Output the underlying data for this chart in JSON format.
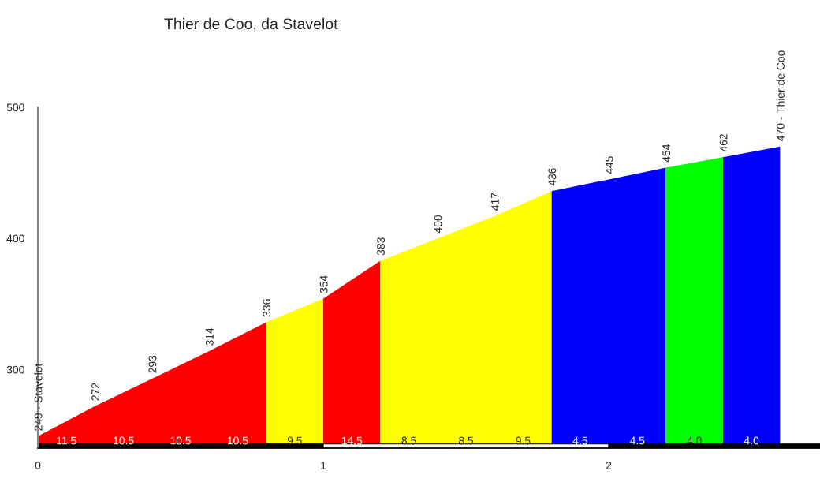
{
  "chart_data": {
    "type": "area",
    "title": "Thier de Coo, da Stavelot",
    "series": [
      {
        "x": [
          0,
          0.2,
          0.4,
          0.6,
          0.8
        ],
        "values": [
          249,
          272,
          293,
          314,
          336
        ],
        "color": "#ff0000",
        "value_labels": [
          "249 - Stavelot",
          "272",
          "293",
          "314",
          null
        ]
      },
      {
        "x": [
          0.8,
          1.0
        ],
        "values": [
          336,
          354
        ],
        "color": "#ffff00",
        "value_labels": [
          "336",
          null
        ]
      },
      {
        "x": [
          1.0,
          1.2
        ],
        "values": [
          354,
          383
        ],
        "color": "#ff0000",
        "value_labels": [
          "354",
          null
        ]
      },
      {
        "x": [
          1.2,
          1.4,
          1.6,
          1.8
        ],
        "values": [
          383,
          400,
          417,
          436
        ],
        "color": "#ffff00",
        "value_labels": [
          "383",
          "400",
          "417",
          null
        ]
      },
      {
        "x": [
          1.8,
          2.0,
          2.2
        ],
        "values": [
          436,
          445,
          454
        ],
        "color": "#0000ff",
        "value_labels": [
          "436",
          "445",
          null
        ]
      },
      {
        "x": [
          2.2,
          2.4
        ],
        "values": [
          454,
          462
        ],
        "color": "#00ff00",
        "value_labels": [
          "454",
          null
        ]
      },
      {
        "x": [
          2.4,
          2.6
        ],
        "values": [
          462,
          470
        ],
        "color": "#0000ff",
        "value_labels": [
          "462",
          "470 - Thier de Coo"
        ]
      }
    ],
    "annotations": [
      "11.5",
      "10.5",
      "10.5",
      "10.5",
      "9.5",
      "14.5",
      "8.5",
      "8.5",
      "9.5",
      "4.5",
      "4.5",
      "4.0",
      "4.0"
    ],
    "xlim": [
      0,
      2.74
    ],
    "ylim": [
      240,
      500
    ],
    "xticks": [
      0,
      1,
      2
    ],
    "yticks": [
      300,
      400,
      500
    ],
    "grid": false,
    "legend": false
  }
}
